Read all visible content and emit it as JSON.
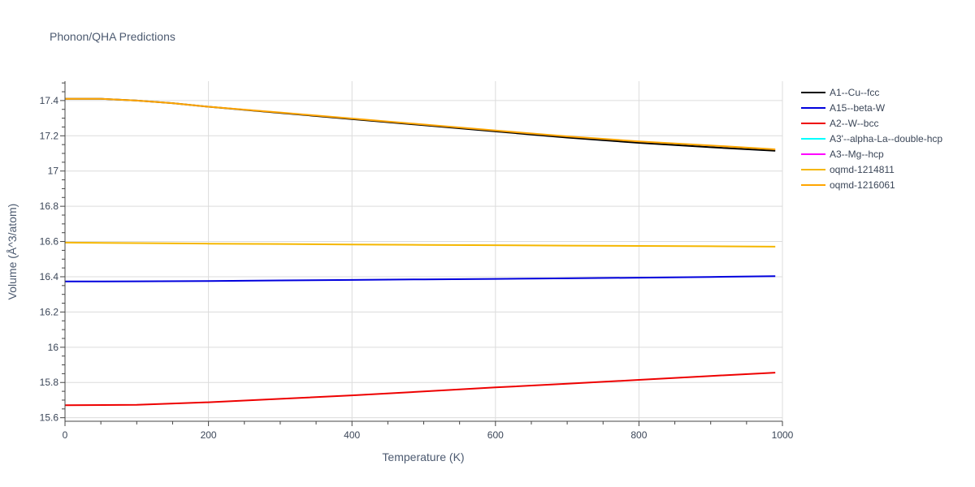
{
  "chart_data": {
    "type": "line",
    "title": "Phonon/QHA Predictions",
    "xlabel": "Temperature (K)",
    "ylabel": "Volume (Å^3/atom)",
    "xlim": [
      0,
      1000
    ],
    "ylim": [
      15.58,
      17.51
    ],
    "xticks": [
      0,
      200,
      400,
      600,
      800,
      1000
    ],
    "xtick_labels": [
      "0",
      "200",
      "400",
      "600",
      "800",
      "1000"
    ],
    "yticks": [
      15.6,
      15.8,
      16.0,
      16.2,
      16.4,
      16.6,
      16.8,
      17.0,
      17.2,
      17.4
    ],
    "ytick_labels": [
      "15.6",
      "15.8",
      "16",
      "16.2",
      "16.4",
      "16.6",
      "16.8",
      "17",
      "17.2",
      "17.4"
    ],
    "grid": true,
    "legend_position": "top-right",
    "series": [
      {
        "name": "A1--Cu--fcc",
        "color": "#000000",
        "x": [
          0,
          50,
          100,
          150,
          200,
          300,
          400,
          500,
          600,
          700,
          800,
          900,
          990
        ],
        "y": [
          17.41,
          17.41,
          17.4,
          17.385,
          17.365,
          17.33,
          17.295,
          17.26,
          17.225,
          17.19,
          17.16,
          17.135,
          17.115
        ]
      },
      {
        "name": "A15--beta-W",
        "color": "#0000dd",
        "x": [
          0,
          100,
          200,
          300,
          400,
          500,
          600,
          700,
          800,
          900,
          990
        ],
        "y": [
          16.373,
          16.374,
          16.376,
          16.379,
          16.382,
          16.385,
          16.388,
          16.391,
          16.395,
          16.399,
          16.403
        ]
      },
      {
        "name": "A2--W--bcc",
        "color": "#ee0000",
        "x": [
          0,
          100,
          200,
          300,
          400,
          500,
          600,
          700,
          800,
          900,
          990
        ],
        "y": [
          15.671,
          15.673,
          15.688,
          15.707,
          15.727,
          15.749,
          15.772,
          15.793,
          15.815,
          15.837,
          15.856
        ]
      },
      {
        "name": "A3'--alpha-La--double-hcp",
        "color": "#00ffff",
        "x": [],
        "y": []
      },
      {
        "name": "A3--Mg--hcp",
        "color": "#ff00ff",
        "x": [],
        "y": []
      },
      {
        "name": "oqmd-1214811",
        "color": "#f5b700",
        "x": [
          0,
          100,
          200,
          300,
          400,
          500,
          600,
          700,
          800,
          900,
          990
        ],
        "y": [
          16.594,
          16.591,
          16.588,
          16.586,
          16.583,
          16.581,
          16.579,
          16.577,
          16.575,
          16.573,
          16.571
        ]
      },
      {
        "name": "oqmd-1216061",
        "color": "#ffa500",
        "x": [
          0,
          50,
          100,
          150,
          200,
          300,
          400,
          500,
          600,
          700,
          800,
          900,
          990
        ],
        "y": [
          17.41,
          17.41,
          17.4,
          17.385,
          17.365,
          17.332,
          17.298,
          17.264,
          17.23,
          17.197,
          17.168,
          17.145,
          17.123
        ]
      }
    ]
  }
}
